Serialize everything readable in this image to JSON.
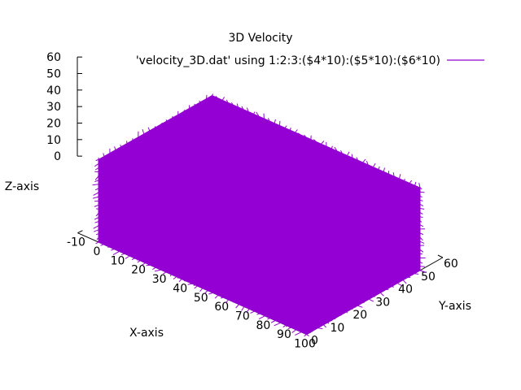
{
  "chart_data": {
    "type": "3d-vector-field",
    "title": "3D Velocity",
    "xlabel": "X-axis",
    "ylabel": "Y-axis",
    "zlabel": "Z-axis",
    "xlim": [
      -10,
      100
    ],
    "ylim": [
      0,
      60
    ],
    "zlim": [
      0,
      60
    ],
    "x_ticks": [
      -10,
      0,
      10,
      20,
      30,
      40,
      50,
      60,
      70,
      80,
      90,
      100
    ],
    "y_ticks": [
      0,
      10,
      20,
      30,
      40,
      50,
      60
    ],
    "z_ticks": [
      0,
      10,
      20,
      30,
      40,
      50,
      60
    ],
    "data_extent": {
      "x": [
        0,
        100
      ],
      "y": [
        0,
        50
      ],
      "z": [
        0,
        50
      ]
    },
    "legend_position": "top-right",
    "grid": false,
    "series": [
      {
        "name": "'velocity_3D.dat' using 1:2:3:($4*10):($5*10):($6*10)",
        "color": "#9400d3"
      }
    ]
  }
}
